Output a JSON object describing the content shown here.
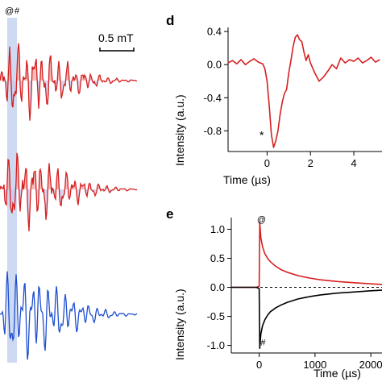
{
  "colors": {
    "red": "#d62020",
    "red_fill": "#f4a6a6",
    "blue": "#1f4fd0",
    "lavender": "#c9c7ec",
    "highlight": "#c4d4ee",
    "black": "#000000"
  },
  "left_panel": {
    "markers": {
      "at": "@",
      "hash": "#"
    },
    "scale_bar": "0.5 mT"
  },
  "chart_data": [
    {
      "panel": "d",
      "type": "line",
      "xlabel": "Time (µs)",
      "ylabel": "Intensity (a.u.)",
      "xlim": [
        -1.8,
        5.3
      ],
      "ylim": [
        -1.05,
        0.45
      ],
      "xticks": [
        "0",
        "2",
        "4"
      ],
      "xtick_values": [
        0,
        2,
        4
      ],
      "yticks": [
        "0.4",
        "0.0",
        "-0.4",
        "-0.8"
      ],
      "ytick_values": [
        0.4,
        0.0,
        -0.4,
        -0.8
      ],
      "annotation": "*",
      "annotation_at": [
        -0.25,
        -0.9
      ],
      "series": [
        {
          "color": "#d62020",
          "x": [
            -1.8,
            -1.6,
            -1.4,
            -1.2,
            -1.0,
            -0.8,
            -0.6,
            -0.4,
            -0.2,
            -0.1,
            0.0,
            0.1,
            0.2,
            0.3,
            0.4,
            0.5,
            0.6,
            0.7,
            0.8,
            0.9,
            1.0,
            1.1,
            1.2,
            1.3,
            1.4,
            1.5,
            1.6,
            1.7,
            1.8,
            1.9,
            2.0,
            2.2,
            2.4,
            2.6,
            2.8,
            3.0,
            3.2,
            3.4,
            3.6,
            3.8,
            4.0,
            4.2,
            4.4,
            4.6,
            4.8,
            5.0,
            5.2
          ],
          "y": [
            0.02,
            0.05,
            0.01,
            0.06,
            0.0,
            0.04,
            0.07,
            0.03,
            0.01,
            -0.05,
            -0.2,
            -0.5,
            -0.85,
            -1.0,
            -0.92,
            -0.8,
            -0.6,
            -0.45,
            -0.35,
            -0.3,
            -0.1,
            0.05,
            0.22,
            0.33,
            0.36,
            0.3,
            0.28,
            0.15,
            0.05,
            0.12,
            0.02,
            -0.1,
            -0.2,
            -0.15,
            -0.08,
            0.0,
            -0.05,
            0.08,
            0.02,
            0.06,
            0.04,
            0.08,
            0.02,
            0.05,
            0.09,
            0.03,
            0.06
          ]
        }
      ]
    },
    {
      "panel": "e",
      "type": "line",
      "xlabel": "Time (µs)",
      "ylabel": "Intensity (a.u.)",
      "xlim": [
        -500,
        2200
      ],
      "ylim": [
        -1.13,
        1.2
      ],
      "xticks": [
        "0",
        "1000",
        "2000"
      ],
      "xtick_values": [
        0,
        1000,
        2000
      ],
      "yticks": [
        "1.0",
        "0.5",
        "0.0",
        "-0.5",
        "-1.0"
      ],
      "ytick_values": [
        1.0,
        0.5,
        0.0,
        -0.5,
        -1.0
      ],
      "annotations": [
        {
          "text": "@",
          "x": 40,
          "y": 1.12
        },
        {
          "text": "#",
          "x": 70,
          "y": -1.0
        }
      ],
      "series": [
        {
          "color": "#d62020",
          "x": [
            -500,
            -200,
            -50,
            0,
            10,
            30,
            60,
            100,
            150,
            200,
            300,
            400,
            500,
            700,
            900,
            1100,
            1400,
            1700,
            2000,
            2200
          ],
          "y": [
            0.0,
            0.0,
            0.0,
            0.02,
            1.12,
            0.85,
            0.7,
            0.58,
            0.5,
            0.44,
            0.36,
            0.3,
            0.26,
            0.2,
            0.16,
            0.13,
            0.1,
            0.08,
            0.06,
            0.05
          ]
        },
        {
          "color": "#000000",
          "x": [
            -500,
            -200,
            -50,
            0,
            10,
            30,
            60,
            100,
            150,
            200,
            300,
            400,
            500,
            700,
            900,
            1100,
            1400,
            1700,
            2000,
            2200
          ],
          "y": [
            0.0,
            0.0,
            0.0,
            -0.02,
            -1.05,
            -0.8,
            -0.66,
            -0.56,
            -0.48,
            -0.42,
            -0.35,
            -0.3,
            -0.26,
            -0.2,
            -0.16,
            -0.13,
            -0.1,
            -0.08,
            -0.06,
            -0.05
          ]
        }
      ]
    }
  ]
}
